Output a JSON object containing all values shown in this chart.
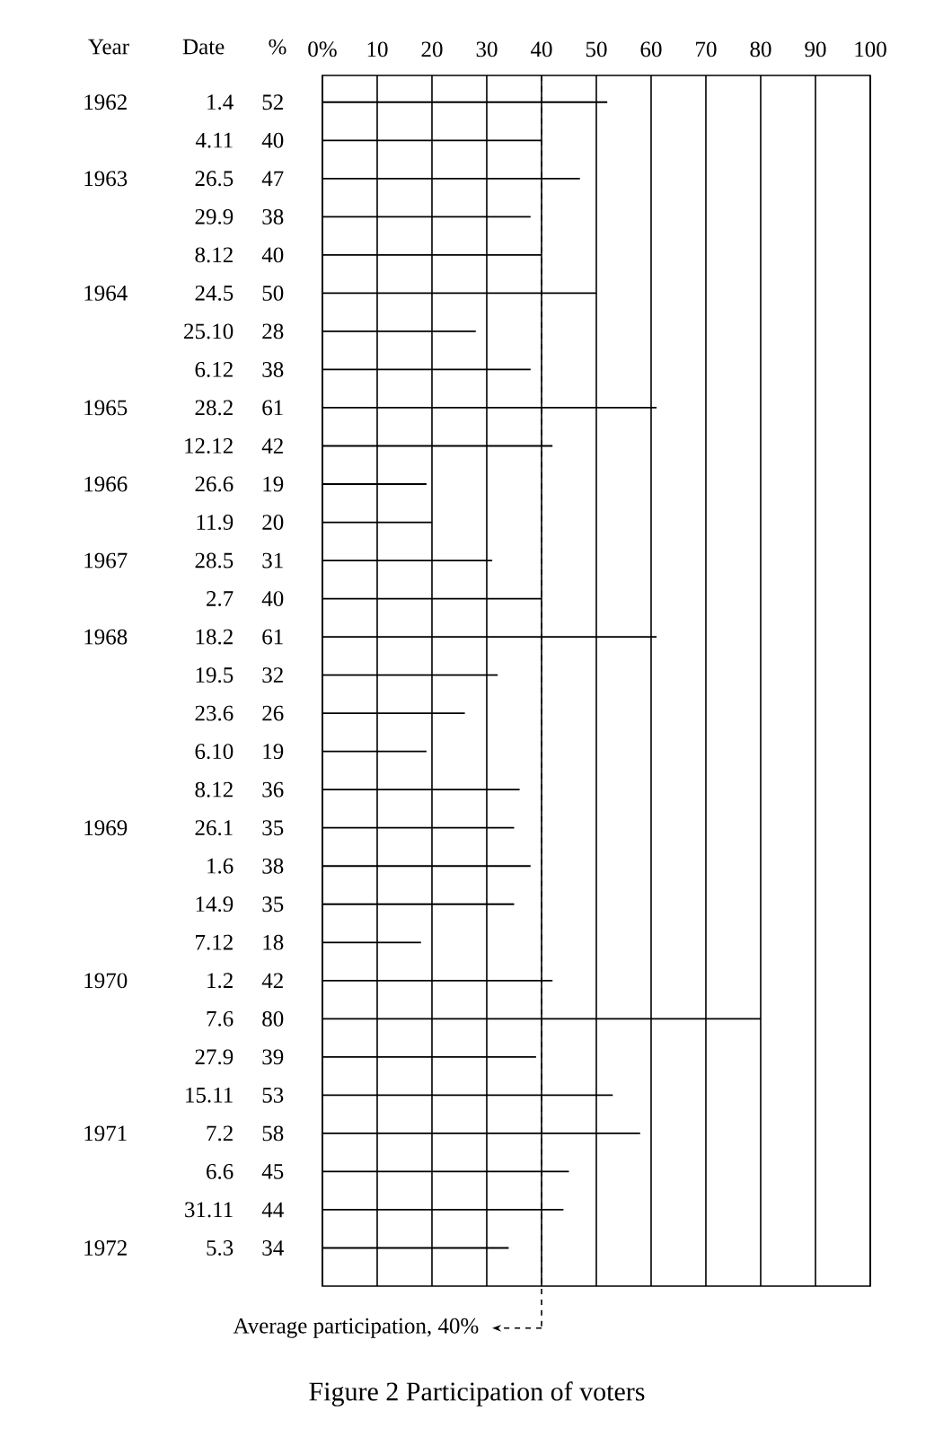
{
  "chart_data": {
    "type": "bar",
    "orientation": "horizontal",
    "title": "Figure 2  Participation of voters",
    "ylabel": "Date",
    "categories": [
      "1.4",
      "4.11",
      "26.5",
      "29.9",
      "8.12",
      "24.5",
      "25.10",
      "6.12",
      "28.2",
      "12.12",
      "26.6",
      "11.9",
      "28.5",
      "2.7",
      "18.2",
      "19.5",
      "23.6",
      "6.10",
      "8.12",
      "26.1",
      "1.6",
      "14.9",
      "7.12",
      "1.2",
      "7.6",
      "27.9",
      "15.11",
      "7.2",
      "6.6",
      "31.11",
      "5.3"
    ],
    "values": [
      52,
      40,
      47,
      38,
      40,
      50,
      28,
      38,
      61,
      42,
      19,
      20,
      31,
      40,
      61,
      32,
      26,
      19,
      36,
      35,
      38,
      35,
      18,
      42,
      80,
      39,
      53,
      58,
      45,
      44,
      34
    ],
    "color": "#000000",
    "data_labels": true,
    "xlim": [
      0,
      100
    ],
    "xticks": [
      {
        "value": 0,
        "label": "0%"
      },
      10,
      20,
      30,
      40,
      50,
      60,
      70,
      80,
      90,
      100
    ],
    "grid": "x",
    "ref_lines": [
      {
        "axis": "x",
        "value": 40,
        "label": "Average participation, 40%",
        "line_style": "dashed"
      }
    ],
    "annotations": [
      "Year",
      "%",
      "1962",
      "1963",
      "1964",
      "1965",
      "1966",
      "1967",
      "1968",
      "1969",
      "1970",
      "1971",
      "1972"
    ]
  }
}
